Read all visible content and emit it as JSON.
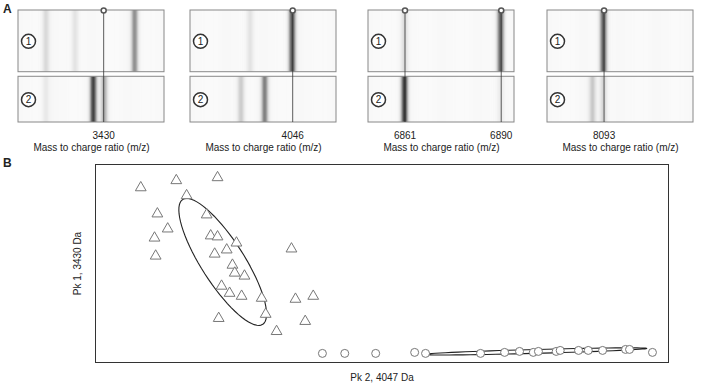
{
  "chart_data": [
    {
      "type": "gel",
      "panel_label": "A",
      "xlabel": "Mass to charge ratio (m/z)",
      "xlim": [
        3360,
        3480
      ],
      "xticks": [
        3430
      ],
      "tick_labels": "x",
      "groups": [
        {
          "label": "1",
          "bands": [
            {
              "mz": 3383,
              "intensity": 0.25
            },
            {
              "mz": 3407,
              "intensity": 0.2
            },
            {
              "mz": 3456,
              "intensity": 0.6
            }
          ]
        },
        {
          "label": "2",
          "bands": [
            {
              "mz": 3383,
              "intensity": 0.15
            },
            {
              "mz": 3422,
              "intensity": 0.85
            },
            {
              "mz": 3431,
              "intensity": 0.5
            }
          ]
        }
      ]
    },
    {
      "type": "gel",
      "xlabel": "Mass to charge ratio (m/z)",
      "xlim": [
        3990,
        4070
      ],
      "xticks": [
        4046
      ],
      "tick_labels": "x",
      "groups": [
        {
          "label": "1",
          "bands": [
            {
              "mz": 4023,
              "intensity": 0.2
            },
            {
              "mz": 4046,
              "intensity": 0.85
            }
          ]
        },
        {
          "label": "2",
          "bands": [
            {
              "mz": 4018,
              "intensity": 0.35
            },
            {
              "mz": 4031,
              "intensity": 0.6
            }
          ]
        }
      ]
    },
    {
      "type": "gel",
      "xlabel": "Mass to charge ratio (m/z)",
      "xlim": [
        6850,
        6894
      ],
      "xticks": [
        6861,
        6890
      ],
      "tick_labels": "x",
      "groups": [
        {
          "label": "1",
          "bands": [
            {
              "mz": 6861,
              "intensity": 0.2
            },
            {
              "mz": 6890,
              "intensity": 0.85
            }
          ]
        },
        {
          "label": "2",
          "bands": [
            {
              "mz": 6861,
              "intensity": 0.85
            },
            {
              "mz": 6890,
              "intensity": 0.15
            }
          ]
        }
      ]
    },
    {
      "type": "gel",
      "xlabel": "Mass to charge ratio (m/z)",
      "xlim": [
        8062,
        8142
      ],
      "xticks": [
        8093
      ],
      "tick_labels": "x",
      "groups": [
        {
          "label": "1",
          "bands": [
            {
              "mz": 8093,
              "intensity": 0.9
            }
          ]
        },
        {
          "label": "2",
          "bands": [
            {
              "mz": 8087,
              "intensity": 0.35
            },
            {
              "mz": 8093,
              "intensity": 0.3
            }
          ]
        }
      ]
    },
    {
      "type": "scatter",
      "panel_label": "B",
      "xlabel": "Pk 2, 4047 Da",
      "ylabel": "Pk 1, 3430 Da",
      "xlim": [
        0,
        100
      ],
      "ylim": [
        0,
        100
      ],
      "tick_labels": false,
      "series": [
        {
          "marker": "triangle",
          "color": "#777777",
          "x": [
            7.9,
            14.1,
            21.3,
            15.9,
            10.8,
            19.4,
            12.6,
            10.3,
            20.1,
            21.3,
            24.6,
            10.5,
            22.9,
            34.2,
            20.8,
            23.9,
            24.3,
            26.0,
            22.0,
            23.4,
            25.5,
            29.0,
            34.9,
            38.0,
            21.5,
            29.7,
            31.6,
            36.6
          ],
          "y": [
            88.3,
            91.9,
            93.4,
            84.3,
            75.1,
            74.6,
            67.5,
            62.9,
            64.0,
            63.5,
            60.4,
            53.8,
            56.9,
            57.4,
            54.8,
            49.2,
            45.2,
            43.7,
            38.6,
            35.0,
            33.5,
            32.5,
            32.0,
            33.5,
            22.3,
            24.4,
            15.7,
            20.8
          ],
          "ellipse": {
            "center": [
              22.2,
              50.8
            ],
            "axis1": [
              7.0,
              -31.5
            ],
            "axis2": [
              3.1,
              6.1
            ]
          }
        },
        {
          "marker": "circle",
          "color": "#777777",
          "x": [
            39.6,
            43.5,
            48.9,
            55.7,
            57.6,
            67.2,
            71.4,
            74.0,
            76.4,
            77.3,
            80.4,
            81.1,
            84.3,
            86.0,
            88.5,
            92.5,
            93.2,
            97.2
          ],
          "y": [
            4.6,
            4.6,
            4.6,
            5.1,
            4.6,
            4.6,
            5.1,
            5.6,
            5.1,
            5.6,
            5.6,
            6.1,
            6.1,
            6.1,
            6.1,
            6.6,
            6.6,
            5.1
          ],
          "ellipse": {
            "center": [
              76.8,
              5.6
            ],
            "axis1": [
              19.4,
              1.5
            ],
            "axis2": [
              0.3,
              1.0
            ]
          }
        }
      ]
    }
  ]
}
